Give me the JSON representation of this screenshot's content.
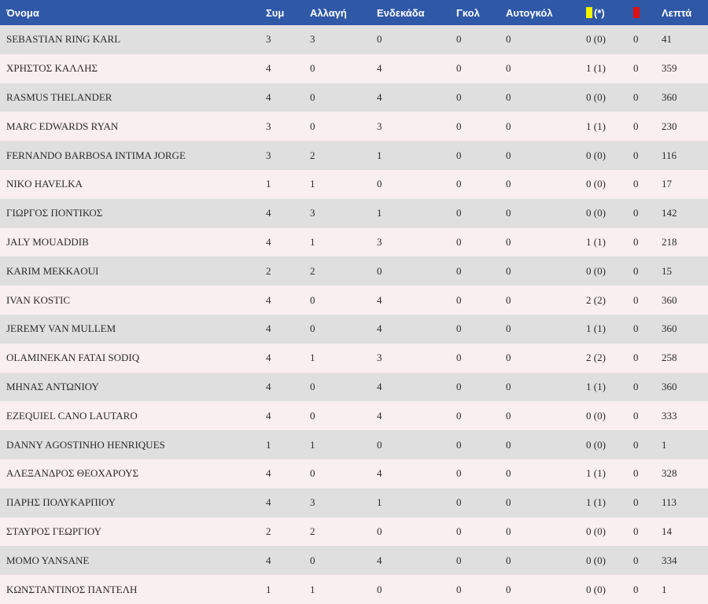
{
  "colors": {
    "header_bg": "#2f58a7",
    "row_gray": "#dfdfdf",
    "row_pink": "#f9eef0",
    "yellow_card": "#f2f200",
    "red_card": "#e01010"
  },
  "header": {
    "name": "Όνομα",
    "apps": "Συμ",
    "sub": "Αλλαγή",
    "start": "Ενδεκάδα",
    "goals": "Γκολ",
    "own_goals": "Αυτογκόλ",
    "yellow_suffix": "(*)",
    "yellow_icon": "yellow-card-icon",
    "red_icon": "red-card-icon",
    "minutes": "Λεπτά"
  },
  "players": [
    {
      "name": "SEBASTIAN RING KARL",
      "apps": "3",
      "sub": "3",
      "start": "0",
      "goals": "0",
      "own_goals": "0",
      "yellow": "0 (0)",
      "red": "0",
      "minutes": "41"
    },
    {
      "name": "ΧΡΗΣΤΟΣ ΚΑΛΛΗΣ",
      "apps": "4",
      "sub": "0",
      "start": "4",
      "goals": "0",
      "own_goals": "0",
      "yellow": "1 (1)",
      "red": "0",
      "minutes": "359"
    },
    {
      "name": "RASMUS THELANDER",
      "apps": "4",
      "sub": "0",
      "start": "4",
      "goals": "0",
      "own_goals": "0",
      "yellow": "0 (0)",
      "red": "0",
      "minutes": "360"
    },
    {
      "name": "MARC EDWARDS RYAN",
      "apps": "3",
      "sub": "0",
      "start": "3",
      "goals": "0",
      "own_goals": "0",
      "yellow": "1 (1)",
      "red": "0",
      "minutes": "230"
    },
    {
      "name": "FERNANDO BARBOSA INTIMA JORGE",
      "apps": "3",
      "sub": "2",
      "start": "1",
      "goals": "0",
      "own_goals": "0",
      "yellow": "0 (0)",
      "red": "0",
      "minutes": "116"
    },
    {
      "name": "NIKO HAVELKA",
      "apps": "1",
      "sub": "1",
      "start": "0",
      "goals": "0",
      "own_goals": "0",
      "yellow": "0 (0)",
      "red": "0",
      "minutes": "17"
    },
    {
      "name": "ΓΙΩΡΓΟΣ ΠΟΝΤΙΚΟΣ",
      "apps": "4",
      "sub": "3",
      "start": "1",
      "goals": "0",
      "own_goals": "0",
      "yellow": "0 (0)",
      "red": "0",
      "minutes": "142"
    },
    {
      "name": "JALY MOUADDIB",
      "apps": "4",
      "sub": "1",
      "start": "3",
      "goals": "0",
      "own_goals": "0",
      "yellow": "1 (1)",
      "red": "0",
      "minutes": "218"
    },
    {
      "name": "KARIM MEKKAOUI",
      "apps": "2",
      "sub": "2",
      "start": "0",
      "goals": "0",
      "own_goals": "0",
      "yellow": "0 (0)",
      "red": "0",
      "minutes": "15"
    },
    {
      "name": "IVAN KOSTIC",
      "apps": "4",
      "sub": "0",
      "start": "4",
      "goals": "0",
      "own_goals": "0",
      "yellow": "2 (2)",
      "red": "0",
      "minutes": "360"
    },
    {
      "name": "JEREMY VAN MULLEM",
      "apps": "4",
      "sub": "0",
      "start": "4",
      "goals": "0",
      "own_goals": "0",
      "yellow": "1 (1)",
      "red": "0",
      "minutes": "360"
    },
    {
      "name": "OLAMINEKAN FATAI SODIQ",
      "apps": "4",
      "sub": "1",
      "start": "3",
      "goals": "0",
      "own_goals": "0",
      "yellow": "2 (2)",
      "red": "0",
      "minutes": "258"
    },
    {
      "name": "ΜΗΝΑΣ ΑΝΤΩΝΙΟΥ",
      "apps": "4",
      "sub": "0",
      "start": "4",
      "goals": "0",
      "own_goals": "0",
      "yellow": "1 (1)",
      "red": "0",
      "minutes": "360"
    },
    {
      "name": "EZEQUIEL CANO LAUTARO",
      "apps": "4",
      "sub": "0",
      "start": "4",
      "goals": "0",
      "own_goals": "0",
      "yellow": "0 (0)",
      "red": "0",
      "minutes": "333"
    },
    {
      "name": "DANNY AGOSTINHO HENRIQUES",
      "apps": "1",
      "sub": "1",
      "start": "0",
      "goals": "0",
      "own_goals": "0",
      "yellow": "0 (0)",
      "red": "0",
      "minutes": "1"
    },
    {
      "name": "ΑΛΕΞΑΝΔΡΟΣ ΘΕΟΧΑΡΟΥΣ",
      "apps": "4",
      "sub": "0",
      "start": "4",
      "goals": "0",
      "own_goals": "0",
      "yellow": "1 (1)",
      "red": "0",
      "minutes": "328"
    },
    {
      "name": "ΠΑΡΗΣ ΠΟΛΥΚΑΡΠΙΟΥ",
      "apps": "4",
      "sub": "3",
      "start": "1",
      "goals": "0",
      "own_goals": "0",
      "yellow": "1 (1)",
      "red": "0",
      "minutes": "113"
    },
    {
      "name": "ΣΤΑΥΡΟΣ ΓΕΩΡΓΙΟΥ",
      "apps": "2",
      "sub": "2",
      "start": "0",
      "goals": "0",
      "own_goals": "0",
      "yellow": "0 (0)",
      "red": "0",
      "minutes": "14"
    },
    {
      "name": "MOMO YANSANE",
      "apps": "4",
      "sub": "0",
      "start": "4",
      "goals": "0",
      "own_goals": "0",
      "yellow": "0 (0)",
      "red": "0",
      "minutes": "334"
    },
    {
      "name": "ΚΩΝΣΤΑΝΤΙΝΟΣ ΠΑΝΤΕΛΗ",
      "apps": "1",
      "sub": "1",
      "start": "0",
      "goals": "0",
      "own_goals": "0",
      "yellow": "0 (0)",
      "red": "0",
      "minutes": "1"
    }
  ]
}
